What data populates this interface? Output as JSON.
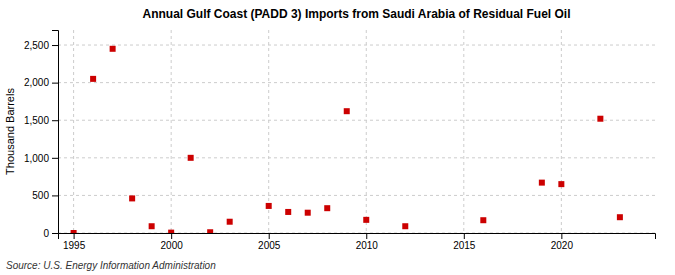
{
  "chart_data": {
    "type": "scatter",
    "title": "Annual Gulf Coast (PADD 3) Imports from Saudi Arabia of Residual Fuel Oil",
    "y_label": "Thousand Barrels",
    "annotations": [
      "Source: U.S. Energy Information Administration"
    ],
    "x": [
      1995,
      1996,
      1997,
      1998,
      1999,
      2000,
      2001,
      2002,
      2003,
      2005,
      2006,
      2007,
      2008,
      2009,
      2010,
      2012,
      2016,
      2019,
      2020,
      2022,
      2023
    ],
    "values": [
      0,
      2050,
      2450,
      460,
      90,
      5,
      1000,
      10,
      150,
      360,
      280,
      270,
      330,
      1620,
      175,
      90,
      170,
      670,
      650,
      1520,
      210
    ],
    "color": "#cc0000",
    "marker": "square",
    "xlim": [
      1994.2,
      2024.8
    ],
    "xticks": [
      1995,
      2000,
      2005,
      2010,
      2015,
      2020
    ],
    "ylim": [
      0,
      2700
    ],
    "yticks": [
      0,
      500,
      {
        "value": 1000,
        "label": "1,000"
      },
      {
        "value": 1500,
        "label": "1,500"
      },
      {
        "value": 2000,
        "label": "2,000"
      },
      {
        "value": 2500,
        "label": "2,500"
      }
    ],
    "grid": true
  }
}
